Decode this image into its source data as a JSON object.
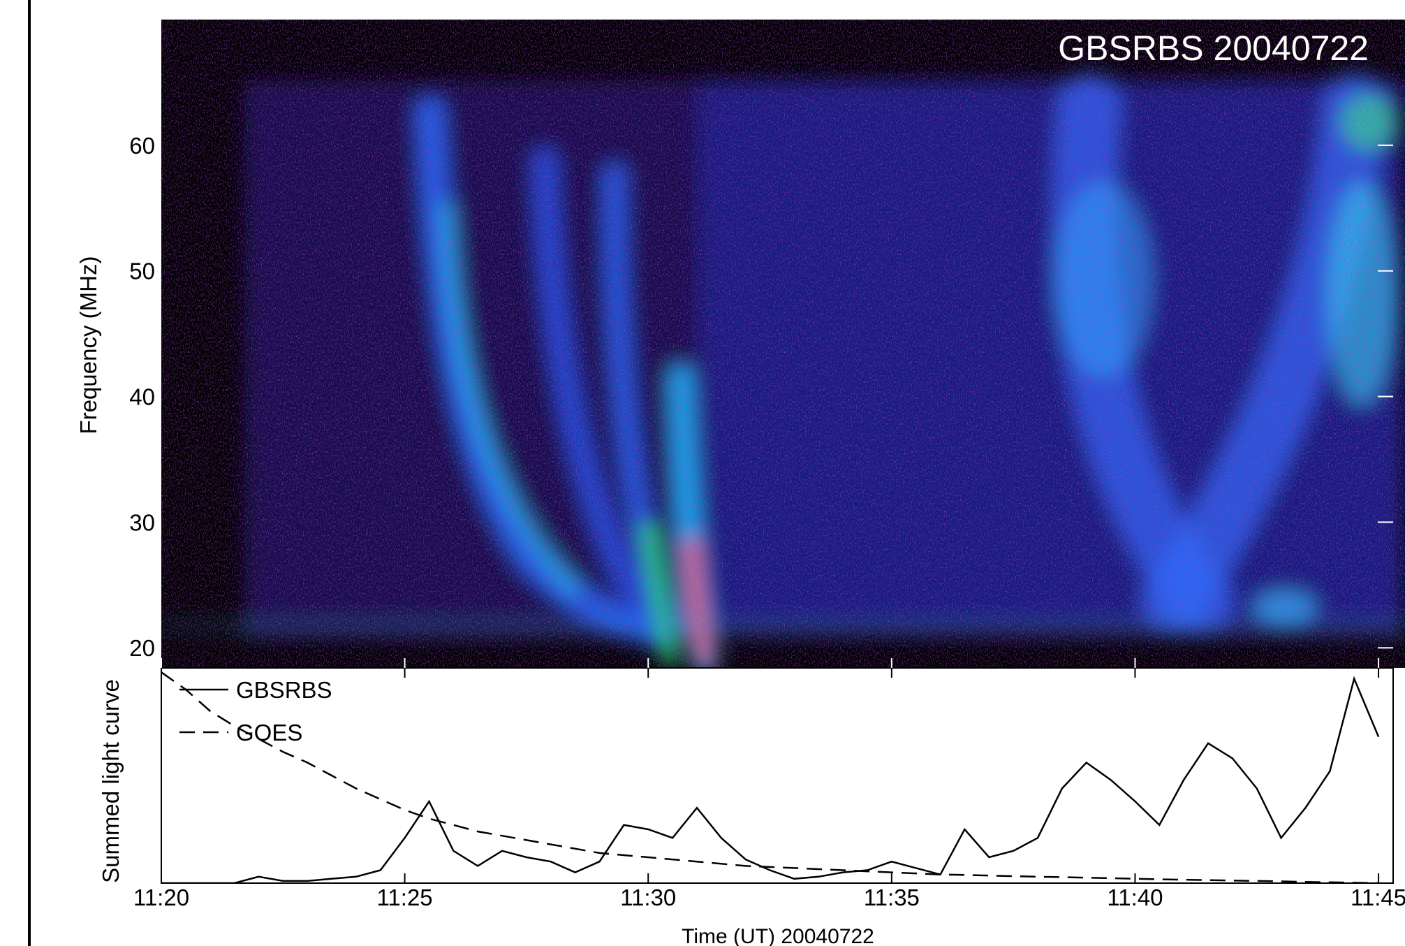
{
  "chart_data": [
    {
      "type": "spectrogram",
      "annotation": "GBSRBS 20040722",
      "ylabel": "Frequency (MHz)",
      "ylim": [
        18.4,
        70
      ],
      "yticks": [
        20,
        30,
        40,
        50,
        60
      ]
    },
    {
      "type": "line",
      "ylabel": "Summed light curve",
      "xlabel": "Time (UT) 20040722",
      "xlim": [
        680,
        705.3
      ],
      "xticks": [
        {
          "value": 680,
          "label": "11:20"
        },
        {
          "value": 685,
          "label": "11:25"
        },
        {
          "value": 690,
          "label": "11:30"
        },
        {
          "value": 695,
          "label": "11:35"
        },
        {
          "value": 700,
          "label": "11:40"
        },
        {
          "value": 705,
          "label": "11:45"
        }
      ],
      "ylim": [
        0,
        1
      ],
      "legend": "upper left",
      "x": [
        680,
        680.5,
        681,
        681.5,
        682,
        682.5,
        683,
        683.5,
        684,
        684.5,
        685,
        685.5,
        686,
        686.5,
        687,
        687.5,
        688,
        688.5,
        689,
        689.5,
        690,
        690.5,
        691,
        691.5,
        692,
        692.5,
        693,
        693.5,
        694,
        694.5,
        695,
        695.5,
        696,
        696.5,
        697,
        697.5,
        698,
        698.5,
        699,
        699.5,
        700,
        700.5,
        701,
        701.5,
        702,
        702.5,
        703,
        703.5,
        704,
        704.5,
        705
      ],
      "series": [
        {
          "name": "GBSRBS",
          "color": "#000000",
          "dash": "solid",
          "values": [
            0,
            0,
            0,
            0,
            0.03,
            0.01,
            0.01,
            0.02,
            0.03,
            0.06,
            0.21,
            0.38,
            0.15,
            0.08,
            0.15,
            0.12,
            0.1,
            0.05,
            0.1,
            0.27,
            0.25,
            0.21,
            0.35,
            0.21,
            0.11,
            0.06,
            0.02,
            0.03,
            0.05,
            0.06,
            0.1,
            0.07,
            0.04,
            0.25,
            0.12,
            0.15,
            0.21,
            0.44,
            0.56,
            0.48,
            0.38,
            0.27,
            0.48,
            0.65,
            0.58,
            0.44,
            0.21,
            0.35,
            0.52,
            0.95,
            0.68
          ]
        },
        {
          "name": "GOES",
          "color": "#000000",
          "dash": "dashed",
          "values": [
            0.98,
            0.9,
            0.8,
            0.73,
            0.67,
            0.61,
            0.56,
            0.5,
            0.44,
            0.39,
            0.34,
            0.3,
            0.27,
            0.24,
            0.22,
            0.2,
            0.18,
            0.16,
            0.14,
            0.13,
            0.12,
            0.11,
            0.1,
            0.09,
            0.08,
            0.075,
            0.07,
            0.065,
            0.06,
            0.055,
            0.05,
            0.045,
            0.04,
            0.038,
            0.035,
            0.032,
            0.03,
            0.028,
            0.025,
            0.023,
            0.02,
            0.018,
            0.016,
            0.014,
            0.012,
            0.01,
            0.008,
            0.006,
            0.004,
            0.002,
            0
          ]
        }
      ]
    }
  ]
}
